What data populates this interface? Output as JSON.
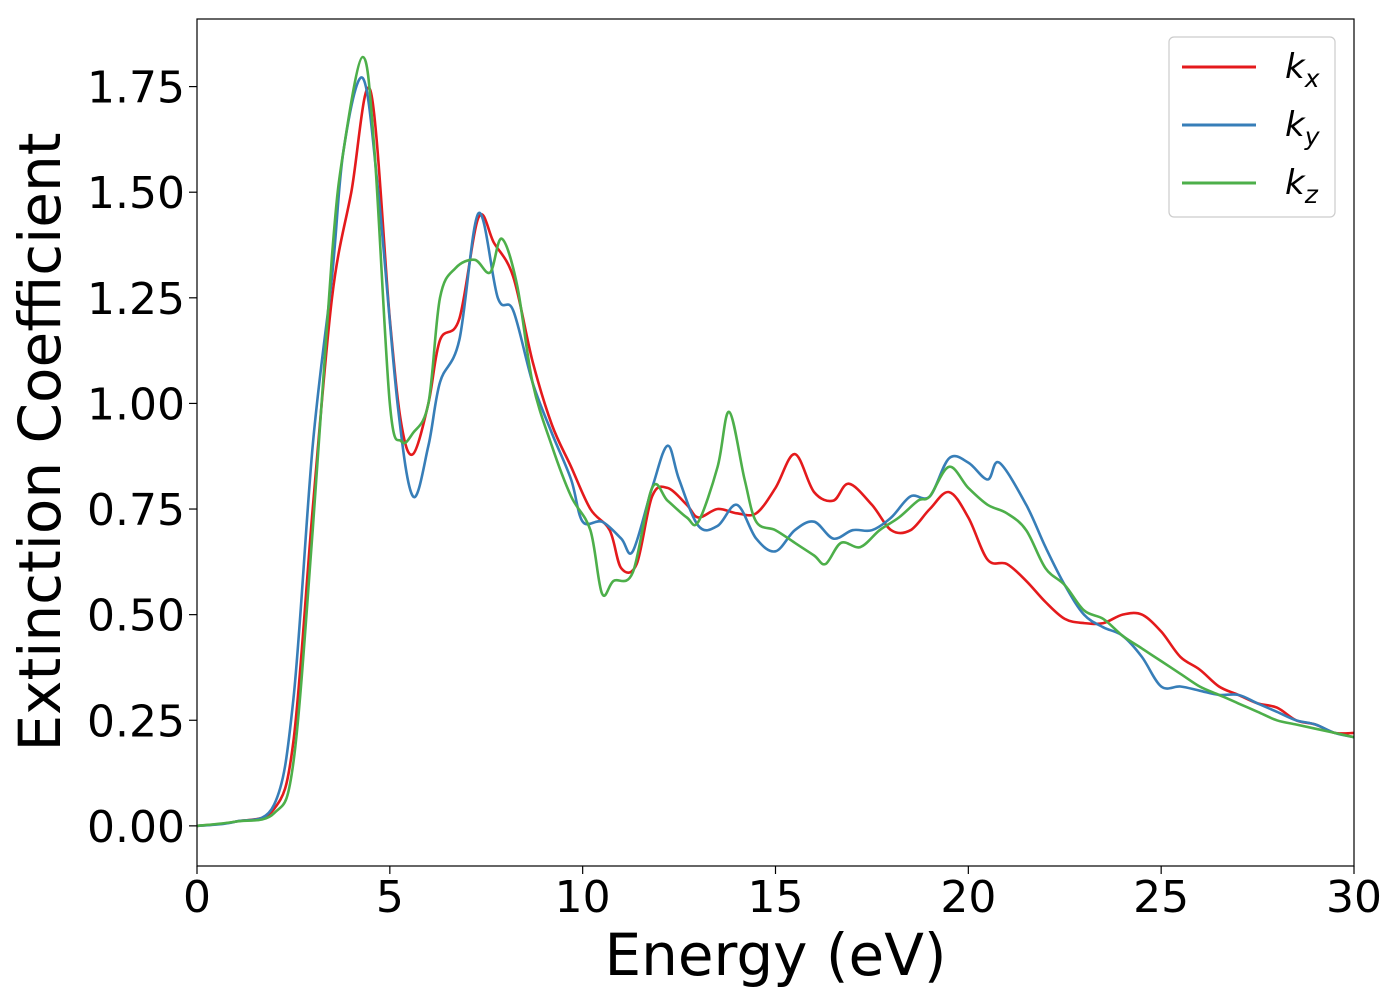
{
  "chart_data": {
    "type": "line",
    "xlabel": "Energy (eV)",
    "ylabel": "Extinction Coefficient",
    "xlim": [
      0,
      30
    ],
    "ylim": [
      -0.095,
      1.91
    ],
    "xticks": [
      0,
      5,
      10,
      15,
      20,
      25,
      30
    ],
    "xtick_labels": [
      "0",
      "5",
      "10",
      "15",
      "20",
      "25",
      "30"
    ],
    "yticks": [
      0,
      0.25,
      0.5,
      0.75,
      1.0,
      1.25,
      1.5,
      1.75
    ],
    "ytick_labels": [
      "0.00",
      "0.25",
      "0.50",
      "0.75",
      "1.00",
      "1.25",
      "1.50",
      "1.75"
    ],
    "grid": false,
    "legend_position": "top-right",
    "series": [
      {
        "name": "k",
        "subscript": "x",
        "color": "#e41a1c",
        "points": [
          [
            0,
            0
          ],
          [
            1,
            0.01
          ],
          [
            2,
            0.04
          ],
          [
            2.5,
            0.2
          ],
          [
            3,
            0.75
          ],
          [
            3.5,
            1.25
          ],
          [
            4,
            1.5
          ],
          [
            4.5,
            1.74
          ],
          [
            5,
            1.2
          ],
          [
            5.3,
            0.95
          ],
          [
            5.6,
            0.88
          ],
          [
            6,
            1.0
          ],
          [
            6.3,
            1.15
          ],
          [
            6.8,
            1.2
          ],
          [
            7.3,
            1.44
          ],
          [
            7.7,
            1.38
          ],
          [
            8.2,
            1.3
          ],
          [
            8.7,
            1.1
          ],
          [
            9.2,
            0.95
          ],
          [
            9.7,
            0.85
          ],
          [
            10.2,
            0.75
          ],
          [
            10.7,
            0.7
          ],
          [
            11,
            0.61
          ],
          [
            11.4,
            0.62
          ],
          [
            11.8,
            0.78
          ],
          [
            12.2,
            0.8
          ],
          [
            12.7,
            0.76
          ],
          [
            13,
            0.73
          ],
          [
            13.5,
            0.75
          ],
          [
            14,
            0.74
          ],
          [
            14.5,
            0.74
          ],
          [
            15,
            0.8
          ],
          [
            15.5,
            0.88
          ],
          [
            16,
            0.79
          ],
          [
            16.5,
            0.77
          ],
          [
            16.9,
            0.81
          ],
          [
            17.5,
            0.76
          ],
          [
            18,
            0.7
          ],
          [
            18.5,
            0.7
          ],
          [
            19,
            0.75
          ],
          [
            19.5,
            0.79
          ],
          [
            20,
            0.73
          ],
          [
            20.5,
            0.63
          ],
          [
            21,
            0.62
          ],
          [
            21.5,
            0.58
          ],
          [
            22,
            0.53
          ],
          [
            22.5,
            0.49
          ],
          [
            23,
            0.48
          ],
          [
            23.5,
            0.48
          ],
          [
            24,
            0.5
          ],
          [
            24.5,
            0.5
          ],
          [
            25,
            0.46
          ],
          [
            25.5,
            0.4
          ],
          [
            26,
            0.37
          ],
          [
            26.5,
            0.33
          ],
          [
            27,
            0.31
          ],
          [
            27.5,
            0.29
          ],
          [
            28,
            0.28
          ],
          [
            28.5,
            0.25
          ],
          [
            29,
            0.24
          ],
          [
            29.5,
            0.22
          ],
          [
            30,
            0.22
          ]
        ]
      },
      {
        "name": "k",
        "subscript": "y",
        "color": "#377eb8",
        "points": [
          [
            0,
            0
          ],
          [
            1,
            0.01
          ],
          [
            2,
            0.05
          ],
          [
            2.5,
            0.3
          ],
          [
            3,
            0.9
          ],
          [
            3.5,
            1.3
          ],
          [
            3.8,
            1.6
          ],
          [
            4.3,
            1.77
          ],
          [
            4.7,
            1.5
          ],
          [
            5.2,
            1.0
          ],
          [
            5.6,
            0.78
          ],
          [
            6,
            0.9
          ],
          [
            6.3,
            1.05
          ],
          [
            6.8,
            1.15
          ],
          [
            7.3,
            1.45
          ],
          [
            7.8,
            1.25
          ],
          [
            8.2,
            1.22
          ],
          [
            8.7,
            1.05
          ],
          [
            9.2,
            0.93
          ],
          [
            9.7,
            0.82
          ],
          [
            10,
            0.72
          ],
          [
            10.5,
            0.72
          ],
          [
            11,
            0.68
          ],
          [
            11.3,
            0.65
          ],
          [
            11.8,
            0.8
          ],
          [
            12.2,
            0.9
          ],
          [
            12.5,
            0.82
          ],
          [
            13,
            0.71
          ],
          [
            13.5,
            0.71
          ],
          [
            14,
            0.76
          ],
          [
            14.5,
            0.68
          ],
          [
            15,
            0.65
          ],
          [
            15.5,
            0.7
          ],
          [
            16,
            0.72
          ],
          [
            16.5,
            0.68
          ],
          [
            17,
            0.7
          ],
          [
            17.5,
            0.7
          ],
          [
            18,
            0.73
          ],
          [
            18.5,
            0.78
          ],
          [
            19,
            0.78
          ],
          [
            19.5,
            0.87
          ],
          [
            20,
            0.86
          ],
          [
            20.5,
            0.82
          ],
          [
            20.8,
            0.86
          ],
          [
            21.5,
            0.76
          ],
          [
            22,
            0.66
          ],
          [
            22.5,
            0.57
          ],
          [
            23,
            0.5
          ],
          [
            23.5,
            0.47
          ],
          [
            24,
            0.45
          ],
          [
            24.5,
            0.4
          ],
          [
            25,
            0.33
          ],
          [
            25.5,
            0.33
          ],
          [
            26,
            0.32
          ],
          [
            26.5,
            0.31
          ],
          [
            27,
            0.31
          ],
          [
            27.5,
            0.29
          ],
          [
            28,
            0.27
          ],
          [
            28.5,
            0.25
          ],
          [
            29,
            0.24
          ],
          [
            29.5,
            0.22
          ],
          [
            30,
            0.21
          ]
        ]
      },
      {
        "name": "k",
        "subscript": "z",
        "color": "#4daf4a",
        "points": [
          [
            0,
            0
          ],
          [
            1,
            0.01
          ],
          [
            2,
            0.03
          ],
          [
            2.5,
            0.15
          ],
          [
            3,
            0.7
          ],
          [
            3.5,
            1.35
          ],
          [
            3.8,
            1.6
          ],
          [
            4.3,
            1.82
          ],
          [
            4.6,
            1.6
          ],
          [
            5,
            1.0
          ],
          [
            5.3,
            0.91
          ],
          [
            5.6,
            0.93
          ],
          [
            6,
            1.0
          ],
          [
            6.3,
            1.25
          ],
          [
            6.7,
            1.32
          ],
          [
            7.2,
            1.34
          ],
          [
            7.6,
            1.31
          ],
          [
            7.9,
            1.39
          ],
          [
            8.3,
            1.28
          ],
          [
            8.7,
            1.05
          ],
          [
            9.2,
            0.9
          ],
          [
            9.7,
            0.78
          ],
          [
            10.2,
            0.7
          ],
          [
            10.5,
            0.55
          ],
          [
            10.8,
            0.58
          ],
          [
            11.3,
            0.6
          ],
          [
            11.8,
            0.8
          ],
          [
            12.2,
            0.77
          ],
          [
            12.7,
            0.73
          ],
          [
            13,
            0.72
          ],
          [
            13.5,
            0.85
          ],
          [
            13.8,
            0.98
          ],
          [
            14.2,
            0.82
          ],
          [
            14.5,
            0.72
          ],
          [
            15,
            0.7
          ],
          [
            15.5,
            0.67
          ],
          [
            16,
            0.64
          ],
          [
            16.3,
            0.62
          ],
          [
            16.7,
            0.67
          ],
          [
            17.2,
            0.66
          ],
          [
            17.7,
            0.7
          ],
          [
            18.2,
            0.73
          ],
          [
            18.7,
            0.77
          ],
          [
            19,
            0.78
          ],
          [
            19.5,
            0.85
          ],
          [
            20,
            0.8
          ],
          [
            20.5,
            0.76
          ],
          [
            21,
            0.74
          ],
          [
            21.5,
            0.7
          ],
          [
            22,
            0.61
          ],
          [
            22.5,
            0.57
          ],
          [
            23,
            0.51
          ],
          [
            23.5,
            0.49
          ],
          [
            24,
            0.45
          ],
          [
            24.5,
            0.42
          ],
          [
            25,
            0.39
          ],
          [
            25.5,
            0.36
          ],
          [
            26,
            0.33
          ],
          [
            26.5,
            0.31
          ],
          [
            27,
            0.29
          ],
          [
            27.5,
            0.27
          ],
          [
            28,
            0.25
          ],
          [
            28.5,
            0.24
          ],
          [
            29,
            0.23
          ],
          [
            29.5,
            0.22
          ],
          [
            30,
            0.21
          ]
        ]
      }
    ]
  }
}
